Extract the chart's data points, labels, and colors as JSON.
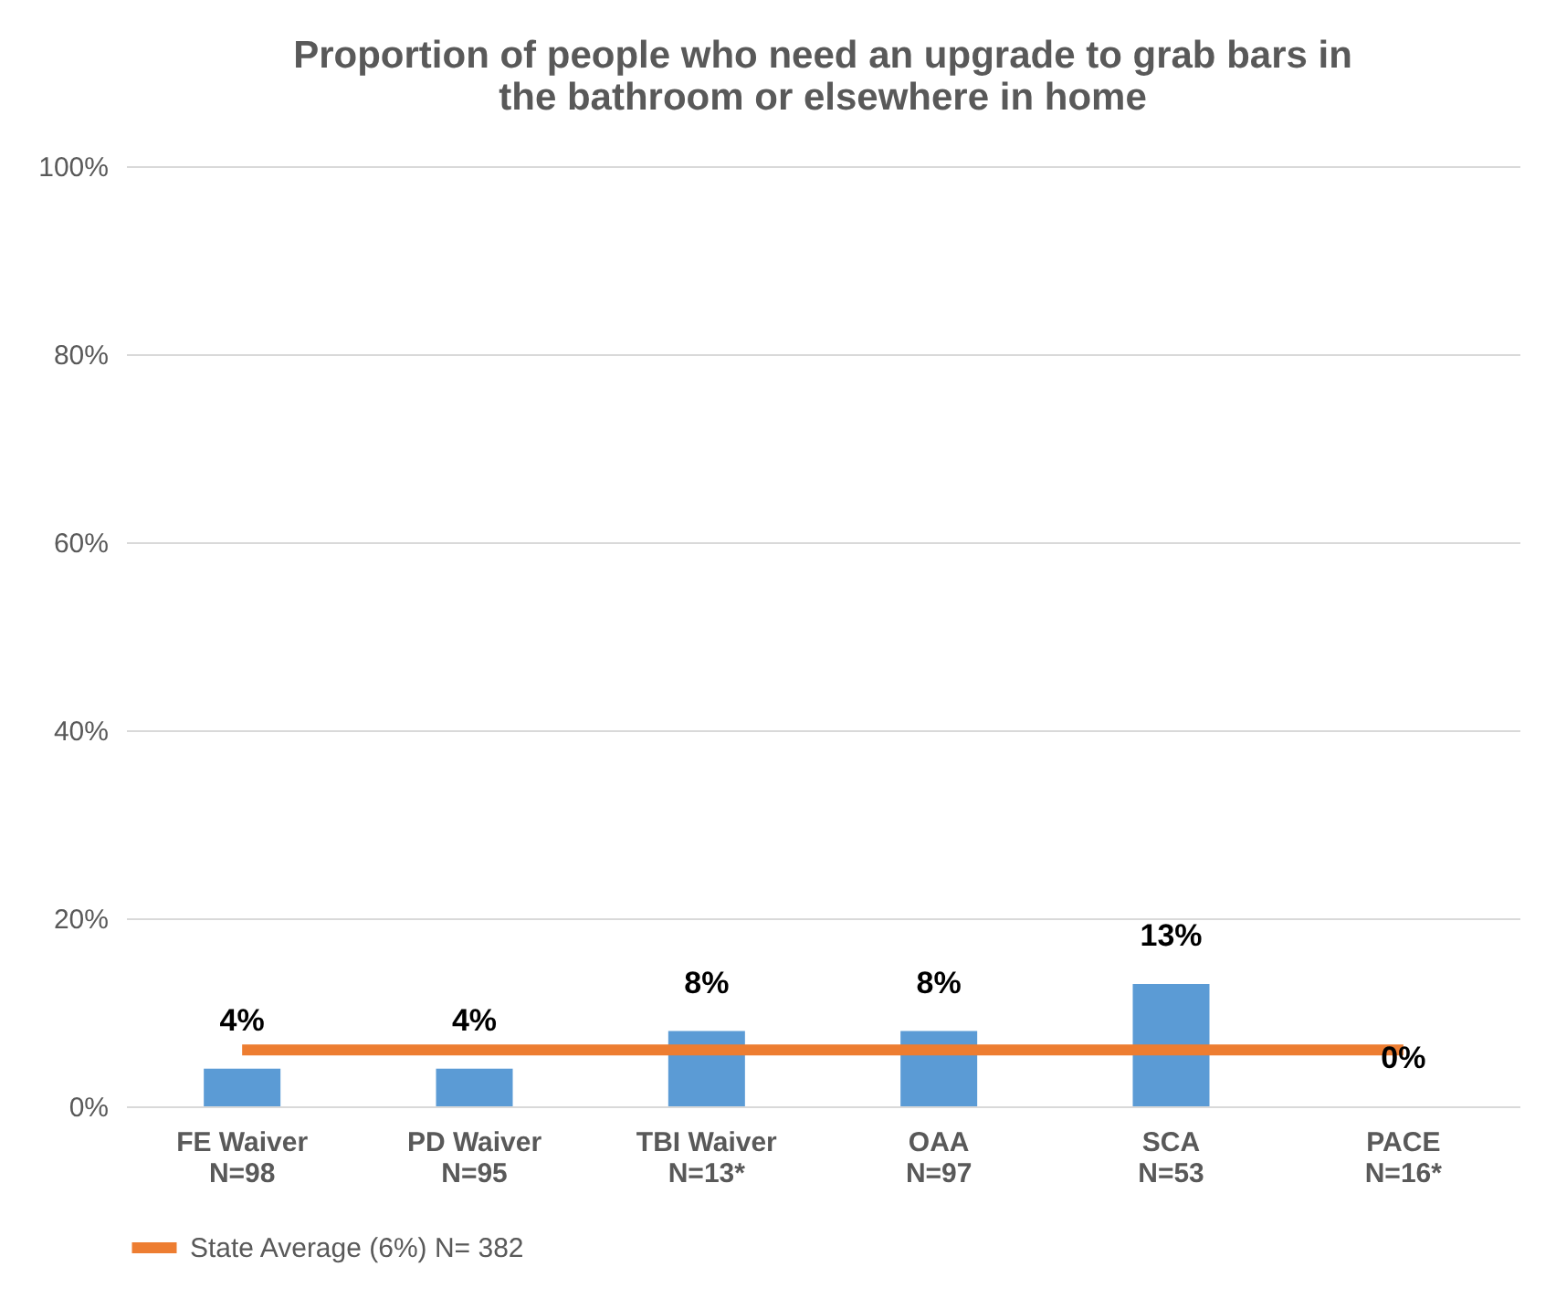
{
  "chart_data": {
    "type": "bar",
    "title": [
      "Proportion of people who need an upgrade to grab bars in",
      "the bathroom or elsewhere in home"
    ],
    "categories": [
      "FE Waiver\nN=98",
      "PD Waiver\nN=95",
      "TBI Waiver\nN=13*",
      "OAA\nN=97",
      "SCA\nN=53",
      "PACE\nN=16*"
    ],
    "series": [
      {
        "color": "#5b9bd5",
        "values": [
          4,
          4,
          8,
          8,
          13,
          0
        ],
        "value_labels": [
          "4%",
          "4%",
          "8%",
          "8%",
          "13%",
          "0%"
        ]
      },
      {
        "type": "line",
        "name": "State Average (6%) N= 382",
        "color": "#ed7d31",
        "values": [
          6,
          6,
          6,
          6,
          6,
          6
        ]
      }
    ],
    "ylim": [
      0,
      100
    ],
    "yticks": [
      {
        "value": 0,
        "label": "0%"
      },
      {
        "value": 20,
        "label": "20%"
      },
      {
        "value": 40,
        "label": "40%"
      },
      {
        "value": 60,
        "label": "60%"
      },
      {
        "value": 80,
        "label": "80%"
      },
      {
        "value": 100,
        "label": "100%"
      }
    ],
    "grid": "y",
    "legend": "bottom"
  }
}
